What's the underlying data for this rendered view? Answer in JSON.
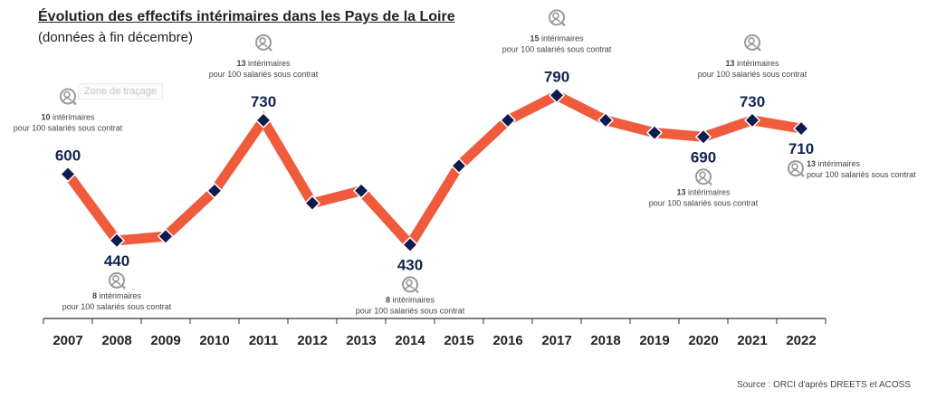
{
  "header": {
    "title": "Évolution des effectifs intérimaires dans les Pays de la Loire",
    "subtitle": "(données à fin décembre)",
    "plot_zone_label": "Zone de traçage"
  },
  "footer": {
    "source": "Source : ORCI d'après DREETS et ACOSS"
  },
  "colors": {
    "line": "#ef5b3c",
    "marker": "#0f1b4d",
    "icon": "#9a9a9a"
  },
  "chart_data": {
    "type": "line",
    "title": "Évolution des effectifs intérimaires dans les Pays de la Loire",
    "subtitle": "(données à fin décembre)",
    "categories": [
      "2007",
      "2008",
      "2009",
      "2010",
      "2011",
      "2012",
      "2013",
      "2014",
      "2015",
      "2016",
      "2017",
      "2018",
      "2019",
      "2020",
      "2021",
      "2022"
    ],
    "series": [
      {
        "values": [
          600,
          440,
          450,
          560,
          730,
          530,
          560,
          430,
          620,
          730,
          790,
          730,
          700,
          690,
          730,
          710
        ]
      }
    ],
    "ylim": [
      300,
      900
    ],
    "grid": false,
    "legend": "none",
    "value_labels": [
      {
        "index": 0,
        "text": "600",
        "position": "above"
      },
      {
        "index": 1,
        "text": "440",
        "position": "below"
      },
      {
        "index": 4,
        "text": "730",
        "position": "above"
      },
      {
        "index": 7,
        "text": "430",
        "position": "below"
      },
      {
        "index": 10,
        "text": "790",
        "position": "above"
      },
      {
        "index": 13,
        "text": "690",
        "position": "below"
      },
      {
        "index": 14,
        "text": "730",
        "position": "above"
      },
      {
        "index": 15,
        "text": "710",
        "position": "below"
      }
    ],
    "annotations": [
      {
        "index": 0,
        "count": "10",
        "line1": " intérimaires",
        "line2": "pour 100 salariés sous contrat",
        "position": "above"
      },
      {
        "index": 1,
        "count": "8",
        "line1": " intérimaires",
        "line2": "pour 100 salariés sous contrat",
        "position": "below"
      },
      {
        "index": 4,
        "count": "13",
        "line1": " intérimaires",
        "line2": "pour 100 salariés sous contrat",
        "position": "above"
      },
      {
        "index": 7,
        "count": "8",
        "line1": " intérimaires",
        "line2": "pour 100 salariés sous contrat",
        "position": "below"
      },
      {
        "index": 10,
        "count": "15",
        "line1": " intérimaires",
        "line2": "pour 100 salariés sous contrat",
        "position": "above"
      },
      {
        "index": 13,
        "count": "13",
        "line1": " intérimaires",
        "line2": "pour 100 salariés sous contrat",
        "position": "below"
      },
      {
        "index": 14,
        "count": "13",
        "line1": " intérimaires",
        "line2": "pour 100 salariés sous contrat",
        "position": "above"
      },
      {
        "index": 15,
        "count": "13",
        "line1": " intérimaires",
        "line2": "pour 100 salariés sous contrat",
        "position": "right"
      }
    ],
    "annotation_icon": "person-search-icon"
  }
}
